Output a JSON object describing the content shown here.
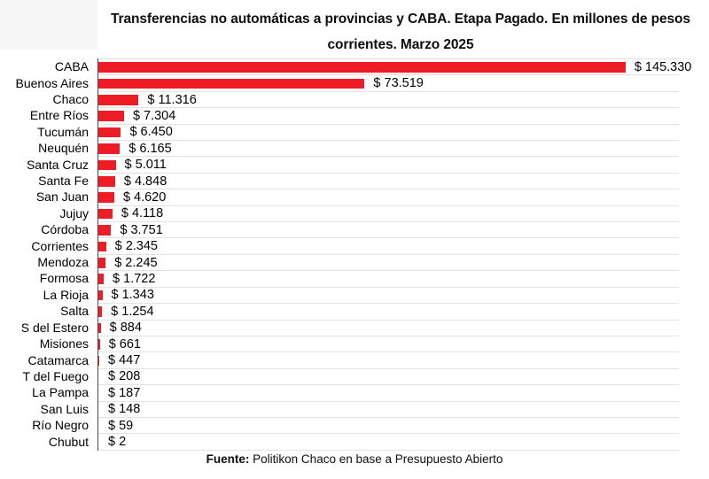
{
  "header": {
    "title_line1": "Transferencias no automáticas a provincias y CABA. Etapa Pagado. En millones de pesos",
    "title_line2": "corrientes. Marzo 2025"
  },
  "footer": {
    "source_label": "Fuente:",
    "source_text": " Politikon Chaco en base a Presupuesto Abierto"
  },
  "colors": {
    "bar": "#ee1c25",
    "gridline": "#e2e2e2",
    "axis_line": "#4b4b4b",
    "corner_block": "#f7f7f7",
    "background": "#ffffff"
  },
  "chart_data": {
    "type": "bar",
    "orientation": "horizontal",
    "title": "Transferencias no automáticas a provincias y CABA. Etapa Pagado. En millones de pesos corrientes. Marzo 2025",
    "xlabel": "",
    "ylabel": "",
    "xlim": [
      0,
      160000
    ],
    "grid": "row-separators",
    "legend": "none",
    "categories": [
      "CABA",
      "Buenos Aires",
      "Chaco",
      "Entre Ríos",
      "Tucumán",
      "Neuquén",
      "Santa Cruz",
      "Santa Fe",
      "San Juan",
      "Jujuy",
      "Córdoba",
      "Corrientes",
      "Mendoza",
      "Formosa",
      "La Rioja",
      "Salta",
      "S del Estero",
      "Misiones",
      "Catamarca",
      "T del Fuego",
      "La Pampa",
      "San Luis",
      "Río Negro",
      "Chubut"
    ],
    "values": [
      145330,
      73519,
      11316,
      7304,
      6450,
      6165,
      5011,
      4848,
      4620,
      4118,
      3751,
      2345,
      2245,
      1722,
      1343,
      1254,
      884,
      661,
      447,
      208,
      187,
      148,
      59,
      2
    ],
    "value_labels": [
      "$ 145.330",
      "$ 73.519",
      "$ 11.316",
      "$ 7.304",
      "$ 6.450",
      "$ 6.165",
      "$ 5.011",
      "$ 4.848",
      "$ 4.620",
      "$ 4.118",
      "$ 3.751",
      "$ 2.345",
      "$ 2.245",
      "$ 1.722",
      "$ 1.343",
      "$ 1.254",
      "$ 884",
      "$ 661",
      "$ 447",
      "$ 208",
      "$ 187",
      "$ 148",
      "$ 59",
      "$ 2"
    ]
  }
}
